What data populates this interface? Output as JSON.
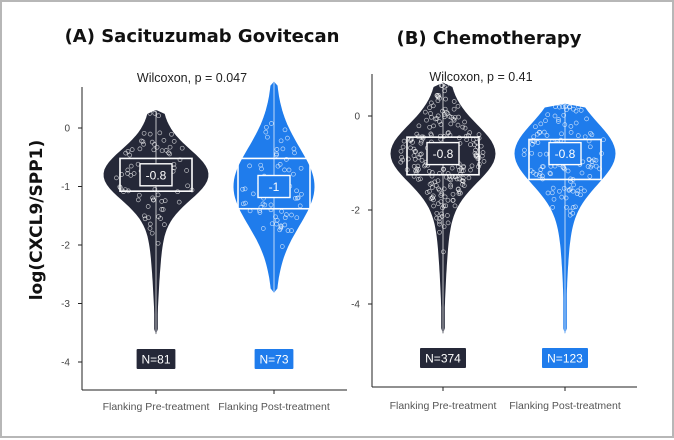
{
  "figure": {
    "ylabel": "log(CXCL9/SPP1)"
  },
  "colors": {
    "pre": "#252838",
    "post": "#1f7cec",
    "box_stroke": "#ffffff",
    "axis": "#222222"
  },
  "chart_data": [
    {
      "type": "violin",
      "title": "(A) Sacituzumab Govitecan",
      "ylim": [
        -4.2,
        0.85
      ],
      "yticks": [
        0,
        -1,
        -2,
        -3,
        -4
      ],
      "annotation": "Wilcoxon, p = 0.047",
      "categories": [
        "Flanking Pre-treatment",
        "Flanking Post-treatment"
      ],
      "groups": [
        {
          "name": "Flanking Pre-treatment",
          "median": -0.8,
          "median_label": "-0.8",
          "q1": -1.08,
          "q3": -0.52,
          "min": -3.5,
          "max": 0.3,
          "n": 81,
          "n_label": "N=81"
        },
        {
          "name": "Flanking Post-treatment",
          "median": -1.0,
          "median_label": "-1",
          "q1": -1.38,
          "q3": -0.52,
          "min": -2.8,
          "max": 0.78,
          "n": 73,
          "n_label": "N=73"
        }
      ]
    },
    {
      "type": "violin",
      "title": "(B) Chemotherapy",
      "ylim": [
        -5.0,
        0.95
      ],
      "yticks": [
        0,
        -2,
        -4
      ],
      "annotation": "Wilcoxon, p = 0.41",
      "categories": [
        "Flanking Pre-treatment",
        "Flanking Post-treatment"
      ],
      "groups": [
        {
          "name": "Flanking Pre-treatment",
          "median": -0.8,
          "median_label": "-0.8",
          "q1": -1.25,
          "q3": -0.45,
          "min": -4.6,
          "max": 0.7,
          "n": 374,
          "n_label": "N=374"
        },
        {
          "name": "Flanking Post-treatment",
          "median": -0.8,
          "median_label": "-0.8",
          "q1": -1.35,
          "q3": -0.5,
          "min": -4.6,
          "max": 0.25,
          "n": 123,
          "n_label": "N=123"
        }
      ]
    }
  ]
}
